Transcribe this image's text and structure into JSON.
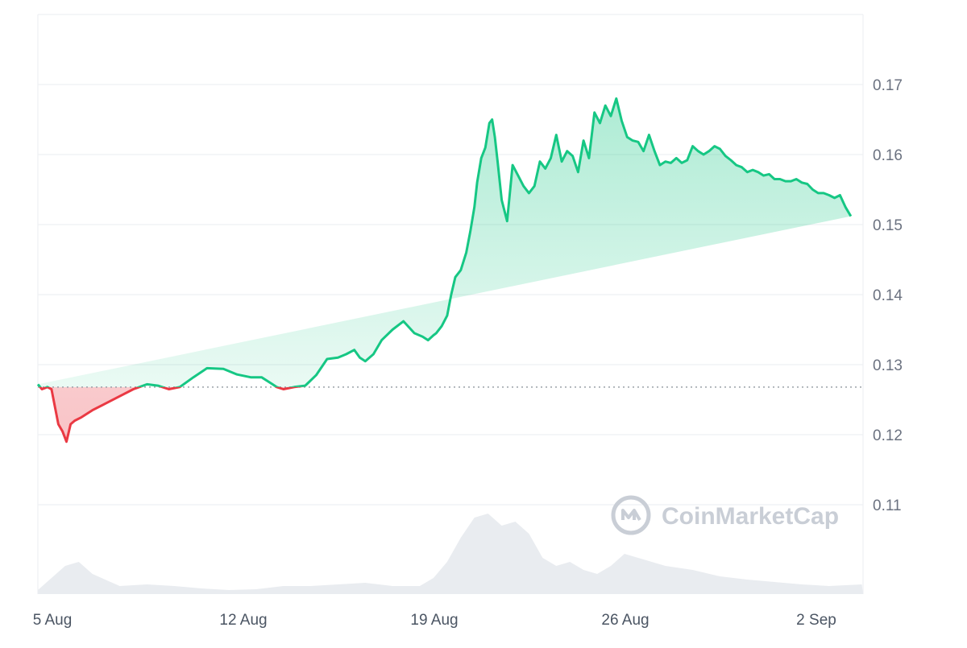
{
  "chart_data": {
    "type": "area",
    "title": "",
    "xlabel": "",
    "ylabel": "",
    "x_ticks": [
      "5 Aug",
      "12 Aug",
      "19 Aug",
      "26 Aug",
      "2 Sep"
    ],
    "x_tick_days": [
      0,
      7,
      14,
      21,
      28
    ],
    "y_ticks": [
      "0.11",
      "0.12",
      "0.13",
      "0.14",
      "0.15",
      "0.16",
      "0.17"
    ],
    "ylim": [
      0.1,
      0.18
    ],
    "xlim_days": [
      0,
      30.2
    ],
    "baseline": 0.1268,
    "grid": true,
    "colors": {
      "up": "#16c784",
      "down": "#ea3943",
      "volume": "#e9ecf0",
      "baseline": "#9aa0a8"
    },
    "series": [
      {
        "values_x_days": [
          0,
          0.15,
          0.35,
          0.5,
          0.6,
          0.75,
          0.9,
          1.05,
          1.2,
          1.35,
          1.6,
          2.0,
          2.5,
          3.0,
          3.5,
          4.0,
          4.4,
          4.8,
          5.2,
          5.7,
          6.2,
          6.8,
          7.3,
          7.8,
          8.2,
          8.6,
          8.75,
          9.0,
          9.4,
          9.8,
          10.2,
          10.6,
          11.0,
          11.3,
          11.6,
          11.8,
          12.0,
          12.3,
          12.6,
          13.0,
          13.4,
          13.8,
          14.1,
          14.3,
          14.5,
          14.6,
          14.8,
          15.0,
          15.15,
          15.3,
          15.5,
          15.7,
          15.85,
          16.0,
          16.1,
          16.25,
          16.4,
          16.55,
          16.65,
          16.75,
          16.85,
          17.0,
          17.2,
          17.4,
          17.6,
          17.8,
          18.0,
          18.2,
          18.4,
          18.6,
          18.8,
          19.0,
          19.2,
          19.4,
          19.6,
          19.8,
          20.0,
          20.2,
          20.4,
          20.6,
          20.8,
          21.0,
          21.2,
          21.4,
          21.6,
          21.8,
          22.0,
          22.2,
          22.4,
          22.6,
          22.8,
          23.0,
          23.2,
          23.4,
          23.6,
          23.8,
          24.0,
          24.2,
          24.4,
          24.6,
          24.8,
          25.0,
          25.2,
          25.4,
          25.6,
          25.8,
          26.0,
          26.2,
          26.4,
          26.6,
          26.8,
          27.0,
          27.2,
          27.4,
          27.6,
          27.8,
          28.0,
          28.2,
          28.4,
          28.6,
          28.8,
          29.0,
          29.2,
          29.4,
          29.6,
          29.8,
          30.0,
          30.2
        ],
        "values": [
          0.1272,
          0.1265,
          0.1268,
          0.1265,
          0.1245,
          0.1215,
          0.1205,
          0.119,
          0.1215,
          0.122,
          0.1225,
          0.1235,
          0.1245,
          0.1255,
          0.1265,
          0.1272,
          0.127,
          0.1265,
          0.1268,
          0.1282,
          0.1295,
          0.1294,
          0.1286,
          0.1282,
          0.1282,
          0.1272,
          0.1268,
          0.1265,
          0.1268,
          0.127,
          0.1285,
          0.1308,
          0.131,
          0.1315,
          0.1321,
          0.131,
          0.1305,
          0.1315,
          0.1335,
          0.135,
          0.1362,
          0.1345,
          0.134,
          0.1335,
          0.1342,
          0.1345,
          0.1355,
          0.137,
          0.14,
          0.1425,
          0.1435,
          0.146,
          0.149,
          0.1525,
          0.156,
          0.1595,
          0.161,
          0.1645,
          0.165,
          0.1625,
          0.159,
          0.1535,
          0.1505,
          0.1585,
          0.157,
          0.1555,
          0.1545,
          0.1555,
          0.159,
          0.158,
          0.1595,
          0.1628,
          0.159,
          0.1605,
          0.1598,
          0.1575,
          0.162,
          0.1595,
          0.166,
          0.1645,
          0.167,
          0.1655,
          0.168,
          0.1648,
          0.1625,
          0.162,
          0.1618,
          0.1605,
          0.1628,
          0.1605,
          0.1585,
          0.159,
          0.1588,
          0.1595,
          0.1588,
          0.1592,
          0.1612,
          0.1605,
          0.16,
          0.1605,
          0.1612,
          0.1608,
          0.1598,
          0.1592,
          0.1585,
          0.1582,
          0.1575,
          0.1578,
          0.1575,
          0.157,
          0.1572,
          0.1565,
          0.1565,
          0.1562,
          0.1562,
          0.1565,
          0.156,
          0.1558,
          0.155,
          0.1545,
          0.1545,
          0.1542,
          0.1538,
          0.1542,
          0.1525,
          0.1512
        ]
      }
    ],
    "volume_note": "relative volume profile",
    "volume_x_days": [
      0,
      0.5,
      1.0,
      1.5,
      2.0,
      3.0,
      4.0,
      5.0,
      6.0,
      7.0,
      8.0,
      9.0,
      10.0,
      11.0,
      12.0,
      13.0,
      14.0,
      14.5,
      15.0,
      15.5,
      16.0,
      16.5,
      17.0,
      17.5,
      18.0,
      18.5,
      19.0,
      19.5,
      20.0,
      20.5,
      21.0,
      21.5,
      22.0,
      22.5,
      23.0,
      24.0,
      25.0,
      26.0,
      27.0,
      28.0,
      29.0,
      30.2
    ],
    "volume_rel": [
      0.05,
      0.2,
      0.35,
      0.4,
      0.25,
      0.1,
      0.12,
      0.1,
      0.07,
      0.05,
      0.06,
      0.1,
      0.1,
      0.12,
      0.14,
      0.1,
      0.1,
      0.2,
      0.4,
      0.7,
      0.95,
      1.0,
      0.85,
      0.9,
      0.75,
      0.45,
      0.35,
      0.4,
      0.3,
      0.25,
      0.35,
      0.5,
      0.45,
      0.4,
      0.35,
      0.3,
      0.22,
      0.18,
      0.15,
      0.12,
      0.1,
      0.12
    ]
  },
  "watermark": {
    "text": "CoinMarketCap",
    "icon": "coinmarketcap-logo-icon"
  }
}
